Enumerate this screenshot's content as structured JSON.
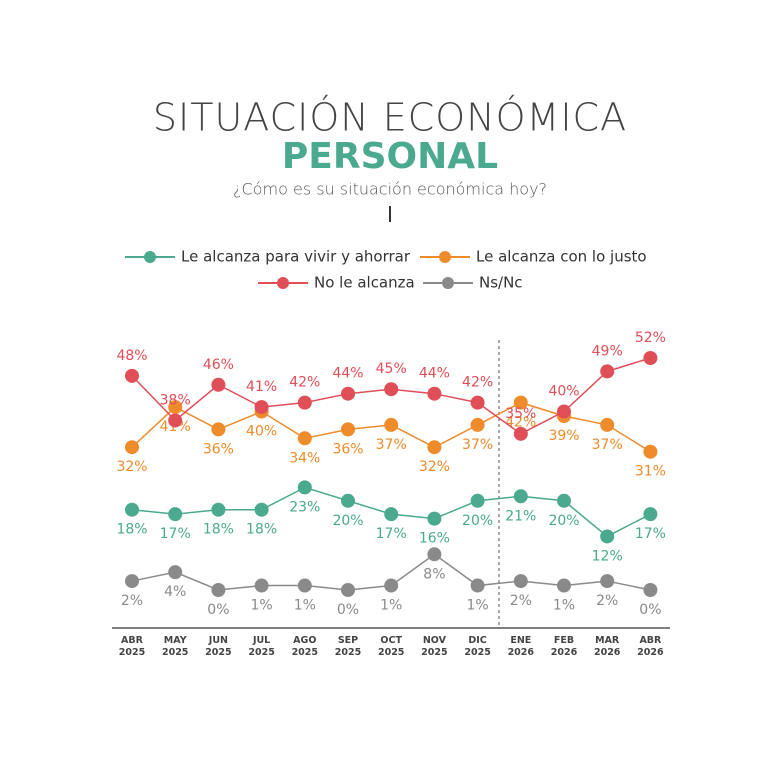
{
  "chart_data": {
    "type": "line",
    "title": "SITUACIÓN ECONÓMICA",
    "subtitle": "PERSONAL",
    "question": "¿Cómo es su situación económica hoy?",
    "categories": [
      "ABR 2025",
      "MAY 2025",
      "JUN 2025",
      "JUL 2025",
      "AGO 2025",
      "SEP 2025",
      "OCT 2025",
      "NOV 2025",
      "DIC 2025",
      "ENE 2026",
      "FEB 2026",
      "MAR 2026",
      "ABR 2026"
    ],
    "series": [
      {
        "name": "Le alcanza para vivir y ahorrar",
        "color": "#4aa98e",
        "values": [
          18,
          17,
          18,
          18,
          23,
          20,
          17,
          16,
          20,
          21,
          20,
          12,
          17
        ],
        "value_labels": [
          "18%",
          "17%",
          "18%",
          "18%",
          "23%",
          "20%",
          "17%",
          "16%",
          "20%",
          "21%",
          "20%",
          "12%",
          "17%"
        ]
      },
      {
        "name": "Le alcanza con lo justo",
        "color": "#ee8b2b",
        "values": [
          32,
          41,
          36,
          40,
          34,
          36,
          37,
          32,
          37,
          42,
          39,
          37,
          31
        ],
        "value_labels": [
          "32%",
          "41%",
          "36%",
          "40%",
          "34%",
          "36%",
          "37%",
          "32%",
          "37%",
          "42%",
          "39%",
          "37%",
          "31%"
        ]
      },
      {
        "name": "No le alcanza",
        "color": "#e04e58",
        "values": [
          48,
          38,
          46,
          41,
          42,
          44,
          45,
          44,
          42,
          35,
          40,
          49,
          52
        ],
        "value_labels": [
          "48%",
          "38%",
          "46%",
          "41%",
          "42%",
          "44%",
          "45%",
          "44%",
          "42%",
          "35%",
          "40%",
          "49%",
          "52%"
        ]
      },
      {
        "name": "Ns/Nc",
        "color": "#8a8a8a",
        "values": [
          2,
          4,
          0,
          1,
          1,
          0,
          1,
          8,
          1,
          2,
          1,
          2,
          0
        ],
        "value_labels": [
          "2%",
          "4%",
          "0%",
          "1%",
          "1%",
          "0%",
          "1%",
          "8%",
          "1%",
          "2%",
          "1%",
          "2%",
          "0%"
        ]
      }
    ]
  }
}
